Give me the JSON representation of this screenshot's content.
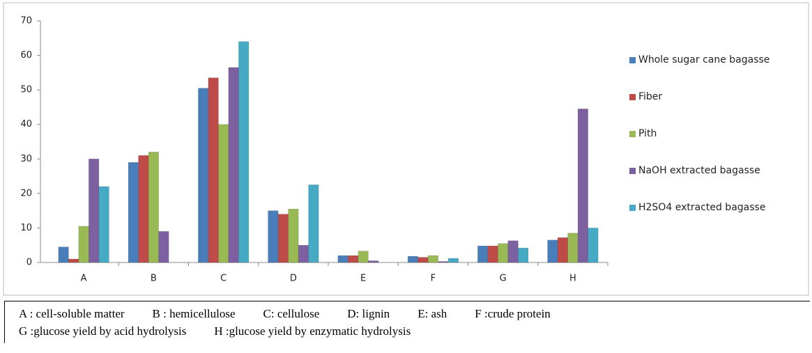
{
  "chart_data": {
    "type": "bar",
    "categories": [
      "A",
      "B",
      "C",
      "D",
      "E",
      "F",
      "G",
      "H"
    ],
    "series": [
      {
        "name": "Whole sugar cane bagasse",
        "color": "#4a7ebb",
        "values": [
          4.5,
          29,
          50.5,
          15,
          2,
          1.8,
          4.8,
          6.5
        ]
      },
      {
        "name": "Fiber",
        "color": "#be4b48",
        "values": [
          1,
          31,
          53.5,
          14,
          2,
          1.5,
          4.8,
          7.2
        ]
      },
      {
        "name": "Pith",
        "color": "#98b954",
        "values": [
          10.5,
          32,
          40,
          15.5,
          3.3,
          2,
          5.5,
          8.5
        ]
      },
      {
        "name": "NaOH extracted bagasse",
        "color": "#7d60a0",
        "values": [
          30,
          9,
          56.5,
          5,
          0.5,
          0.3,
          6.3,
          44.5
        ]
      },
      {
        "name": "H2SO4 extracted bagasse",
        "color": "#46aac5",
        "values": [
          22,
          null,
          64,
          22.5,
          null,
          1.2,
          4.2,
          10
        ]
      }
    ],
    "ylim": [
      0,
      70
    ],
    "yticks": [
      0,
      10,
      20,
      30,
      40,
      50,
      60,
      70
    ],
    "grid": false,
    "legend": "right"
  },
  "caption": {
    "line1": [
      "A : cell-soluble matter",
      "B : hemicellulose",
      "C: cellulose",
      "D: lignin",
      "E: ash",
      "F :crude protein"
    ],
    "line2": [
      "G :glucose yield by acid hydrolysis",
      "H :glucose yield by enzymatic hydrolysis"
    ]
  }
}
